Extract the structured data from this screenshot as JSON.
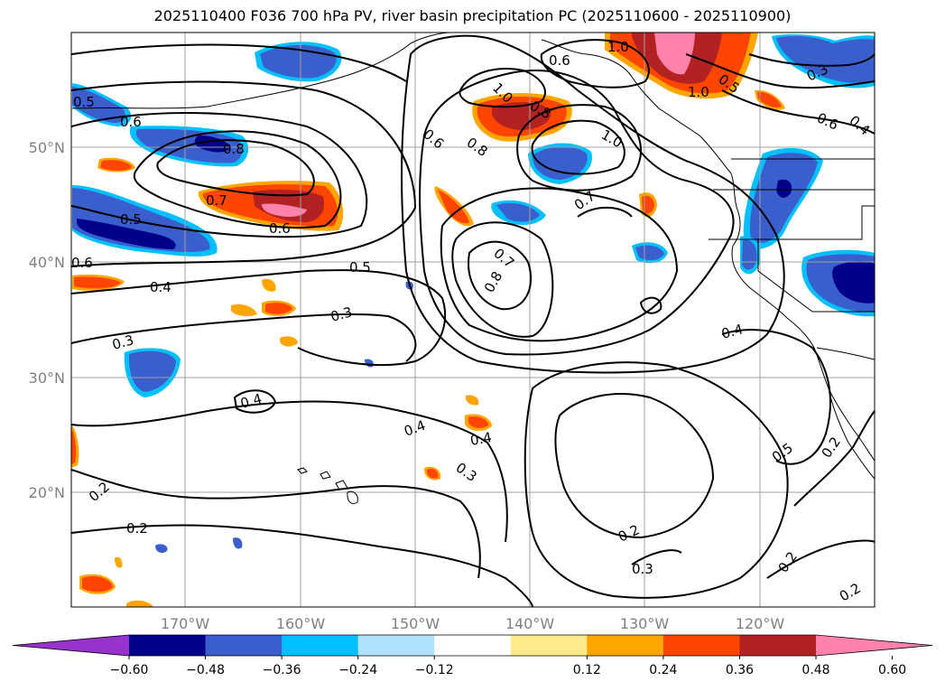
{
  "title": "2025110400 F036 700 hPa PV, river basin precipitation PC (2025110600 - 2025110900)",
  "lat_labels": [
    "50°N",
    "40°N",
    "30°N",
    "20°N"
  ],
  "lon_labels": [
    "170°W",
    "160°W",
    "150°W",
    "140°W",
    "130°W",
    "120°W"
  ],
  "colorbar": {
    "colors": [
      "#9932cc",
      "#00008b",
      "#3a5fcd",
      "#00bfff",
      "#b0e2ff",
      "#ffffff",
      "#ffe98a",
      "#ffa500",
      "#ff4500",
      "#b22222",
      "#ff82ab"
    ],
    "ticks": [
      "−0.60",
      "−0.48",
      "−0.36",
      "−0.24",
      "−0.12",
      "0.12",
      "0.24",
      "0.36",
      "0.48",
      "0.60"
    ]
  },
  "contour_labels": [
    "1.0",
    "0.5",
    "0.6",
    "0.8",
    "0.7",
    "0.5",
    "0.6",
    "1.0",
    "0.8",
    "0.6",
    "0.8",
    "0.6",
    "1.0",
    "0.5",
    "1.0",
    "0.3",
    "0.6",
    "0.4",
    "0.7",
    "0.7",
    "0.8",
    "0.6",
    "0.5",
    "0.4",
    "0.3",
    "0.3",
    "0.4",
    "0.4",
    "0.4",
    "0.3",
    "0.4",
    "0.5",
    "0.2",
    "0.2",
    "0.2",
    "0.3",
    "0.2",
    "0.2",
    "0.2"
  ],
  "precip_colors": {
    "dark_blue": "#00008b",
    "blue": "#3a5fcd",
    "cyan": "#00bfff",
    "light_blue": "#b0e2ff",
    "yellow": "#ffe98a",
    "orange": "#ffa500",
    "red_orange": "#ff4500",
    "dark_red": "#b22222",
    "pink": "#ff82ab"
  }
}
